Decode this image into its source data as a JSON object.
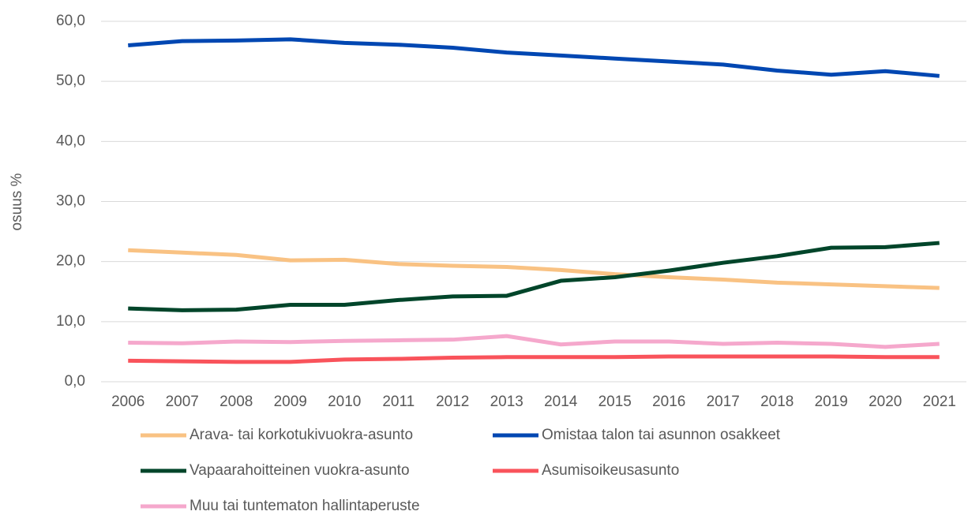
{
  "chart_data": {
    "type": "line",
    "ylabel": "osuus %",
    "x": [
      "2006",
      "2007",
      "2008",
      "2009",
      "2010",
      "2011",
      "2012",
      "2013",
      "2014",
      "2015",
      "2016",
      "2017",
      "2018",
      "2019",
      "2020",
      "2021"
    ],
    "ylim": [
      0,
      60
    ],
    "yticks": [
      {
        "value": 0,
        "label": "0,0"
      },
      {
        "value": 10,
        "label": "10,0"
      },
      {
        "value": 20,
        "label": "20,0"
      },
      {
        "value": 30,
        "label": "30,0"
      },
      {
        "value": 40,
        "label": "40,0"
      },
      {
        "value": 50,
        "label": "50,0"
      },
      {
        "value": 60,
        "label": "60,0"
      }
    ],
    "grid": true,
    "series": [
      {
        "name": "Arava- tai korkotukivuokra-asunto",
        "color": "#f9c283",
        "values": [
          21.9,
          21.5,
          21.1,
          20.2,
          20.3,
          19.6,
          19.3,
          19.1,
          18.6,
          17.9,
          17.4,
          17.0,
          16.5,
          16.2,
          15.9,
          15.6
        ]
      },
      {
        "name": "Omistaa talon tai asunnon osakkeet",
        "color": "#0047b2",
        "values": [
          56.0,
          56.7,
          56.8,
          57.0,
          56.4,
          56.1,
          55.6,
          54.8,
          54.3,
          53.8,
          53.3,
          52.8,
          51.8,
          51.1,
          51.7,
          50.9
        ]
      },
      {
        "name": "Vapaarahoitteinen vuokra-asunto",
        "color": "#00452a",
        "values": [
          12.2,
          11.9,
          12.0,
          12.8,
          12.8,
          13.6,
          14.2,
          14.3,
          16.8,
          17.4,
          18.5,
          19.8,
          20.9,
          22.3,
          22.4,
          23.1
        ]
      },
      {
        "name": "Asumisoikeusasunto",
        "color": "#f9535b",
        "values": [
          3.5,
          3.4,
          3.3,
          3.3,
          3.7,
          3.8,
          4.0,
          4.1,
          4.1,
          4.1,
          4.2,
          4.2,
          4.2,
          4.2,
          4.1,
          4.1
        ]
      },
      {
        "name": "Muu tai tuntematon hallintaperuste",
        "color": "#f5a8cc",
        "values": [
          6.5,
          6.4,
          6.7,
          6.6,
          6.8,
          6.9,
          7.0,
          7.6,
          6.2,
          6.7,
          6.7,
          6.3,
          6.5,
          6.3,
          5.8,
          6.3
        ]
      }
    ]
  }
}
